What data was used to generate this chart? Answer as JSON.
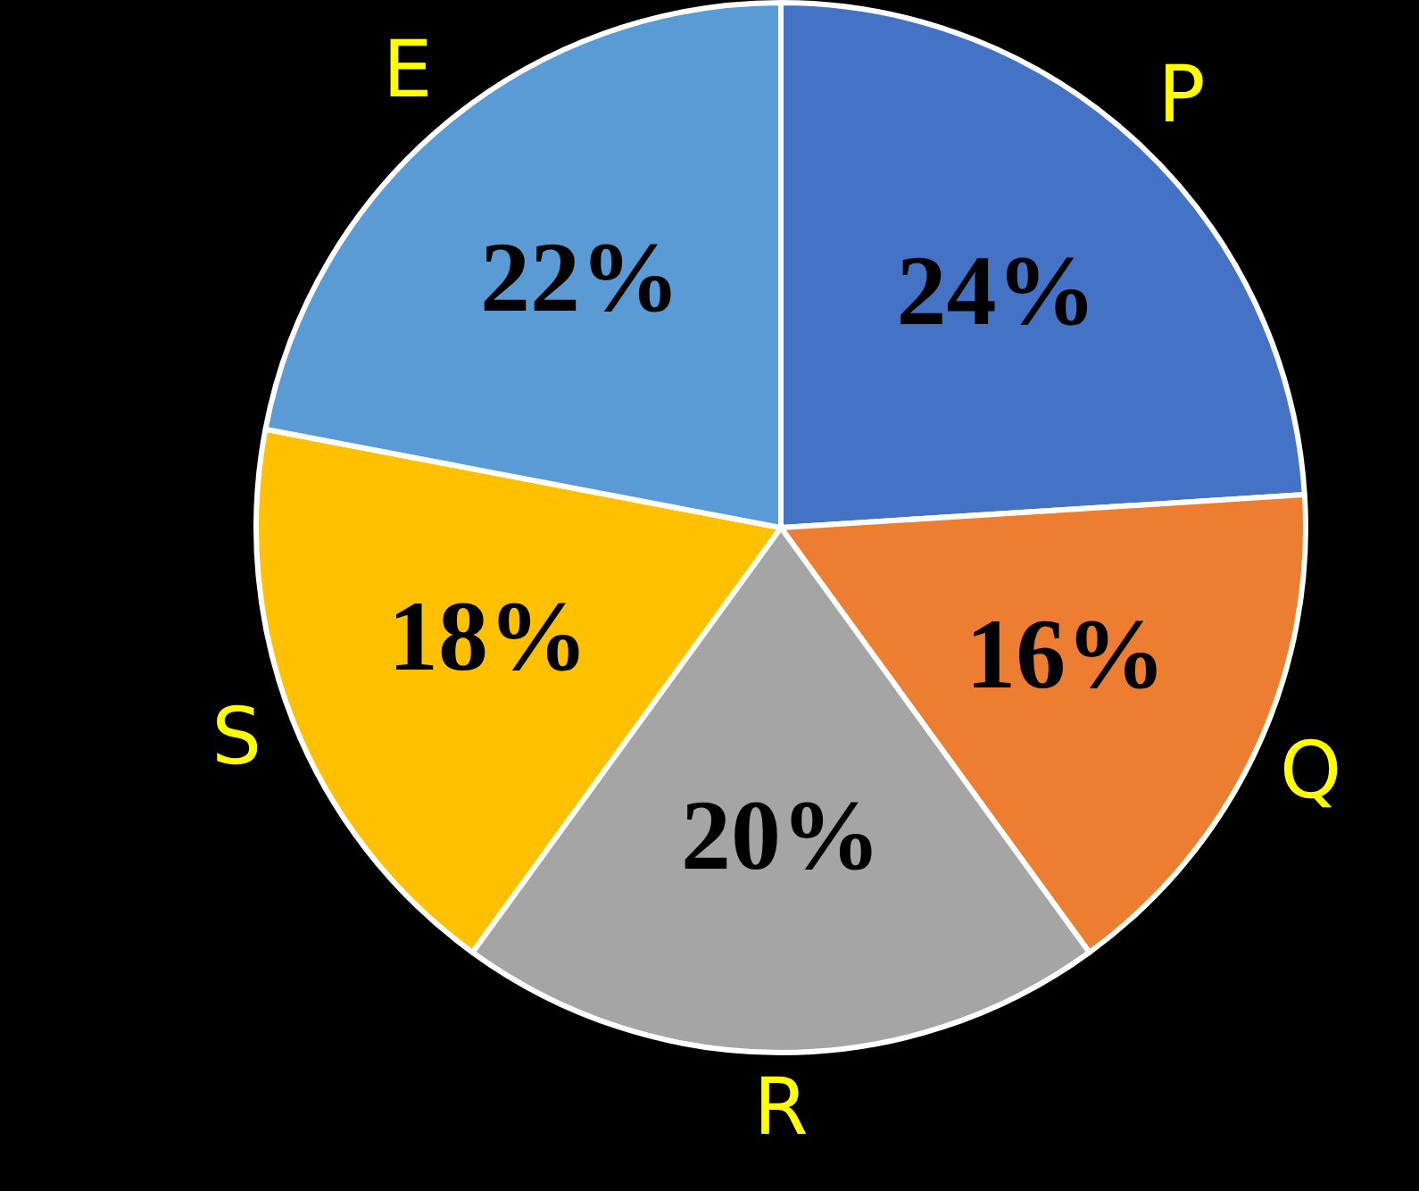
{
  "chart_data": {
    "type": "pie",
    "categories": [
      "P",
      "Q",
      "R",
      "S",
      "E"
    ],
    "values": [
      24,
      16,
      20,
      18,
      22
    ],
    "colors": [
      "#4472c4",
      "#ed7d31",
      "#a5a5a5",
      "#ffc000",
      "#5b9bd5"
    ],
    "value_labels": [
      "24%",
      "16%",
      "20%",
      "18%",
      "22%"
    ],
    "legend": false
  }
}
